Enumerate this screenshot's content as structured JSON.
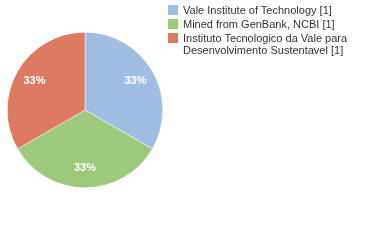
{
  "chart_data": {
    "type": "pie",
    "categories": [
      "Vale Institute of Technology [1]",
      "Mined from GenBank, NCBI [1]",
      "Instituto Tecnologico da Vale para Desenvolvimento Sustentavel [1]"
    ],
    "values": [
      33,
      33,
      33
    ],
    "value_labels": [
      "33%",
      "33%",
      "33%"
    ],
    "colors": [
      "#a0bde3",
      "#9ec87b",
      "#dd7a62"
    ],
    "data_labels": true,
    "legend": "top-right"
  }
}
